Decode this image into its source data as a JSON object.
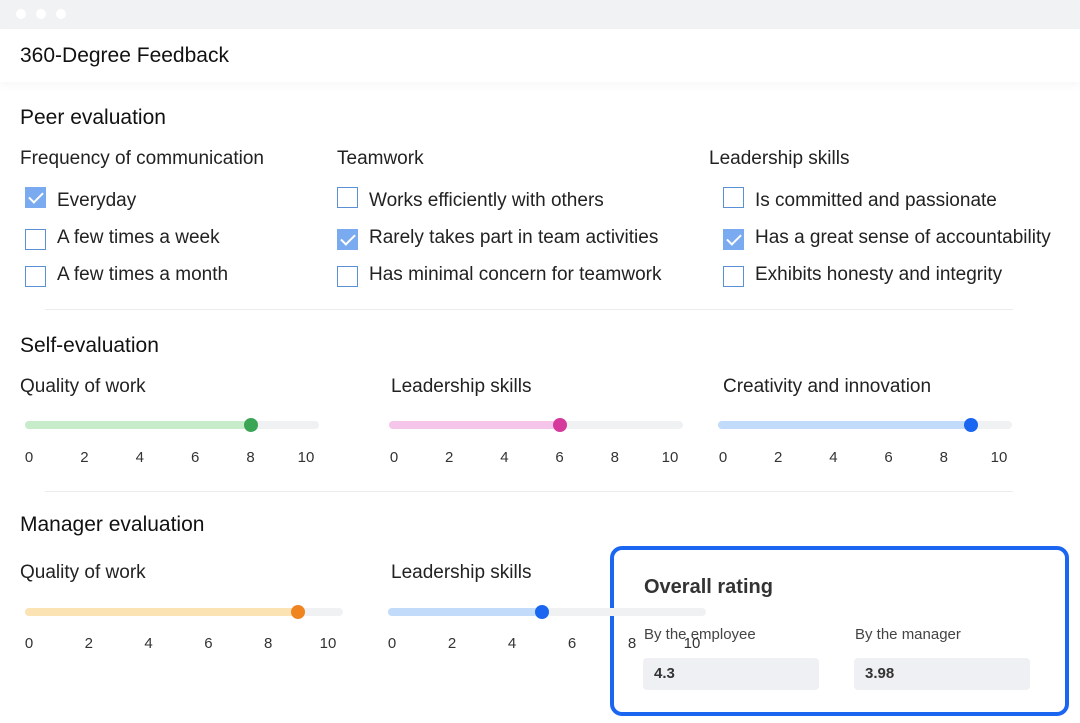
{
  "app": {
    "title": "360-Degree Feedback"
  },
  "peer": {
    "title": "Peer evaluation",
    "groups": [
      {
        "label": "Frequency of communication",
        "options": [
          {
            "label": "Everyday",
            "checked": true
          },
          {
            "label": "A few times a week",
            "checked": false
          },
          {
            "label": "A few times a month",
            "checked": false
          }
        ]
      },
      {
        "label": "Teamwork",
        "options": [
          {
            "label": "Works efficiently with others",
            "checked": false
          },
          {
            "label": "Rarely takes part in team activities",
            "checked": true
          },
          {
            "label": "Has minimal concern for teamwork",
            "checked": false
          }
        ]
      },
      {
        "label": "Leadership skills",
        "options": [
          {
            "label": "Is committed and passionate",
            "checked": false
          },
          {
            "label": "Has a great sense of accountability",
            "checked": true
          },
          {
            "label": "Exhibits honesty and integrity",
            "checked": false
          }
        ]
      }
    ]
  },
  "self": {
    "title": "Self-evaluation",
    "sliders": [
      {
        "label": "Quality of work",
        "value": 8,
        "color": "#3aa655",
        "fill": "#c7ecc9"
      },
      {
        "label": "Leadership skills",
        "value": 6,
        "color": "#d6399c",
        "fill": "#f6c6ea"
      },
      {
        "label": "Creativity and innovation",
        "value": 9,
        "color": "#1a66f0",
        "fill": "#c2dbfb"
      }
    ]
  },
  "manager": {
    "title": "Manager evaluation",
    "sliders": [
      {
        "label": "Quality of work",
        "value": 9,
        "color": "#f0841f",
        "fill": "#fce3b4"
      },
      {
        "label": "Leadership skills",
        "value": 5,
        "color": "#1a66f0",
        "fill": "#c2dbfb"
      }
    ]
  },
  "scale": {
    "ticks": [
      "0",
      "2",
      "4",
      "6",
      "8",
      "10"
    ],
    "min": 0,
    "max": 10
  },
  "overall": {
    "title": "Overall rating",
    "employee_label": "By the employee",
    "employee_value": "4.3",
    "manager_label": "By the manager",
    "manager_value": "3.98"
  }
}
